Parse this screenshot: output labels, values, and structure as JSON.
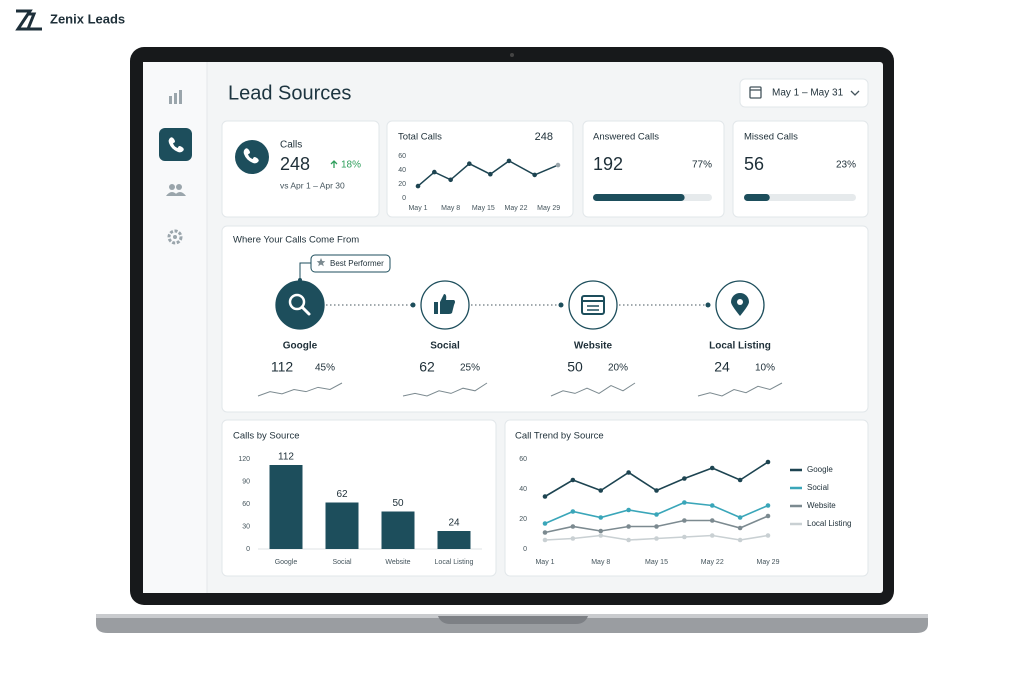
{
  "brand": "Zenix Leads",
  "header": {
    "title": "Lead Sources",
    "date_range": "May 1 – May 31"
  },
  "kpis": {
    "calls": {
      "label": "Calls",
      "value": "248",
      "change": "18%",
      "compare": "vs Apr 1 – Apr 30"
    },
    "total_calls": {
      "title": "Total Calls",
      "value": "248",
      "chart": {
        "type": "line",
        "x": [
          1,
          4.5,
          8,
          12,
          16.5,
          20.5,
          26,
          31
        ],
        "values": [
          17,
          37,
          26,
          49,
          34,
          53,
          33,
          47
        ],
        "color": "#1d4451",
        "xlim": [
          1,
          31
        ],
        "xticks": [
          {
            "value": 1,
            "label": "May 1"
          },
          {
            "value": 8,
            "label": "May 8"
          },
          {
            "value": 15,
            "label": "May 15"
          },
          {
            "value": 22,
            "label": "May 22"
          },
          {
            "value": 29,
            "label": "May 29"
          }
        ],
        "ylim": [
          0,
          60
        ],
        "yticks": [
          0,
          20,
          40,
          60
        ]
      }
    },
    "answered": {
      "title": "Answered Calls",
      "value": "192",
      "percent": 77,
      "percent_label": "77%"
    },
    "missed": {
      "title": "Missed Calls",
      "value": "56",
      "percent": 23,
      "percent_label": "23%"
    }
  },
  "sources": {
    "title": "Where Your Calls Come From",
    "badge": "Best Performer",
    "items": [
      {
        "name": "Google",
        "value": "112",
        "share": "45%",
        "trend": [
          3,
          5,
          4,
          6,
          5,
          7,
          6,
          9
        ]
      },
      {
        "name": "Social",
        "value": "62",
        "share": "25%",
        "trend": [
          3,
          4,
          3,
          5,
          4,
          6,
          5,
          8
        ]
      },
      {
        "name": "Website",
        "value": "50",
        "share": "20%",
        "trend": [
          3,
          5,
          4,
          6,
          4,
          7,
          5,
          8
        ]
      },
      {
        "name": "Local Listing",
        "value": "24",
        "share": "10%",
        "trend": [
          3,
          4,
          3,
          5,
          4,
          6,
          5,
          7
        ]
      }
    ]
  },
  "calls_by_source": {
    "type": "bar",
    "title": "Calls by Source",
    "categories": [
      "Google",
      "Social",
      "Website",
      "Local Listing"
    ],
    "values": [
      112,
      62,
      50,
      24
    ],
    "color": "#1d4e5c",
    "ylim": [
      0,
      120
    ],
    "yticks": [
      0,
      30,
      60,
      90,
      120
    ]
  },
  "call_trend": {
    "type": "line",
    "title": "Call Trend by Source",
    "categories": [
      "May 1",
      null,
      "May 8",
      null,
      "May 15",
      null,
      "May 22",
      null,
      "May 29"
    ],
    "ylim": [
      0,
      60
    ],
    "yticks": [
      0,
      20,
      40,
      60
    ],
    "series": [
      {
        "name": "Google",
        "color": "#1d4451",
        "values": [
          35,
          46,
          39,
          51,
          39,
          47,
          54,
          46,
          58
        ]
      },
      {
        "name": "Social",
        "color": "#3aa6b9",
        "values": [
          17,
          25,
          21,
          26,
          23,
          31,
          29,
          21,
          29
        ]
      },
      {
        "name": "Website",
        "color": "#7c8a90",
        "values": [
          11,
          15,
          12,
          15,
          15,
          19,
          19,
          14,
          22
        ]
      },
      {
        "name": "Local Listing",
        "color": "#c9d0d3",
        "values": [
          6,
          7,
          9,
          6,
          7,
          8,
          9,
          6,
          9
        ]
      }
    ]
  }
}
